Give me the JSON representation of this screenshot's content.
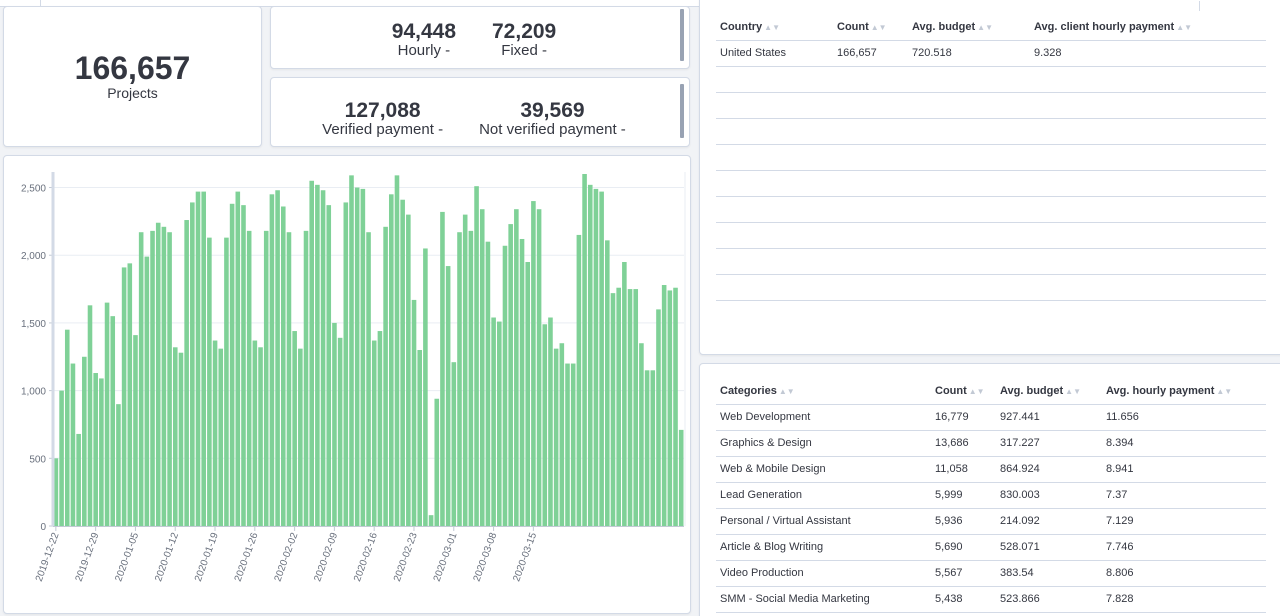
{
  "metrics": {
    "projects": {
      "value": "166,657",
      "label": "Projects"
    },
    "hourly": {
      "value": "94,448",
      "label": "Hourly -"
    },
    "fixed": {
      "value": "72,209",
      "label": "Fixed -"
    },
    "verified": {
      "value": "127,088",
      "label": "Verified payment -"
    },
    "not_verified": {
      "value": "39,569",
      "label": "Not verified payment -"
    }
  },
  "country_table": {
    "headers": [
      "Country",
      "Count",
      "Avg. budget",
      "Avg. client hourly payment"
    ],
    "rows": [
      [
        "United States",
        "166,657",
        "720.518",
        "9.328"
      ]
    ]
  },
  "category_table": {
    "headers": [
      "Categories",
      "Count",
      "Avg. budget",
      "Avg. hourly payment"
    ],
    "rows": [
      [
        "Web Development",
        "16,779",
        "927.441",
        "11.656"
      ],
      [
        "Graphics & Design",
        "13,686",
        "317.227",
        "8.394"
      ],
      [
        "Web & Mobile Design",
        "11,058",
        "864.924",
        "8.941"
      ],
      [
        "Lead Generation",
        "5,999",
        "830.003",
        "7.37"
      ],
      [
        "Personal / Virtual Assistant",
        "5,936",
        "214.092",
        "7.129"
      ],
      [
        "Article & Blog Writing",
        "5,690",
        "528.071",
        "7.746"
      ],
      [
        "Video Production",
        "5,567",
        "383.54",
        "8.806"
      ],
      [
        "SMM - Social Media Marketing",
        "5,438",
        "523.866",
        "7.828"
      ]
    ]
  },
  "chart_data": {
    "type": "bar",
    "color": "#7fd197",
    "ylim": [
      0,
      2600
    ],
    "y_ticks": [
      0,
      500,
      1000,
      1500,
      2000,
      2500
    ],
    "y_tick_labels": [
      "0",
      "500",
      "1,000",
      "1,500",
      "2,000",
      "2,500"
    ],
    "x_tick_labels": [
      "2019-12-22",
      "2019-12-29",
      "2020-01-05",
      "2020-01-12",
      "2020-01-19",
      "2020-01-26",
      "2020-02-02",
      "2020-02-09",
      "2020-02-16",
      "2020-02-23",
      "2020-03-01",
      "2020-03-08",
      "2020-03-15"
    ],
    "x_tick_start_index": 0,
    "x_tick_step": 7,
    "values": [
      500,
      1000,
      1450,
      1200,
      680,
      1250,
      1630,
      1130,
      1090,
      1650,
      1550,
      900,
      1910,
      1940,
      1410,
      2170,
      1990,
      2180,
      2240,
      2210,
      2170,
      1320,
      1280,
      2260,
      2390,
      2470,
      2470,
      2130,
      1370,
      1310,
      2130,
      2380,
      2470,
      2370,
      2180,
      1370,
      1320,
      2180,
      2450,
      2480,
      2360,
      2170,
      1440,
      1310,
      2180,
      2550,
      2520,
      2480,
      2370,
      1500,
      1390,
      2390,
      2590,
      2500,
      2490,
      2170,
      1370,
      1440,
      2210,
      2450,
      2590,
      2410,
      2300,
      1670,
      1300,
      2050,
      80,
      940,
      2320,
      1920,
      1210,
      2170,
      2300,
      2180,
      2510,
      2340,
      2100,
      1540,
      1510,
      2070,
      2230,
      2340,
      2120,
      1950,
      2400,
      2340,
      1490,
      1540,
      1310,
      1350,
      1200,
      1200,
      2150,
      2600,
      2520,
      2490,
      2470,
      2110,
      1720,
      1760,
      1950,
      1750,
      1750,
      1350,
      1150,
      1150,
      1600,
      1780,
      1740,
      1760,
      710
    ]
  }
}
